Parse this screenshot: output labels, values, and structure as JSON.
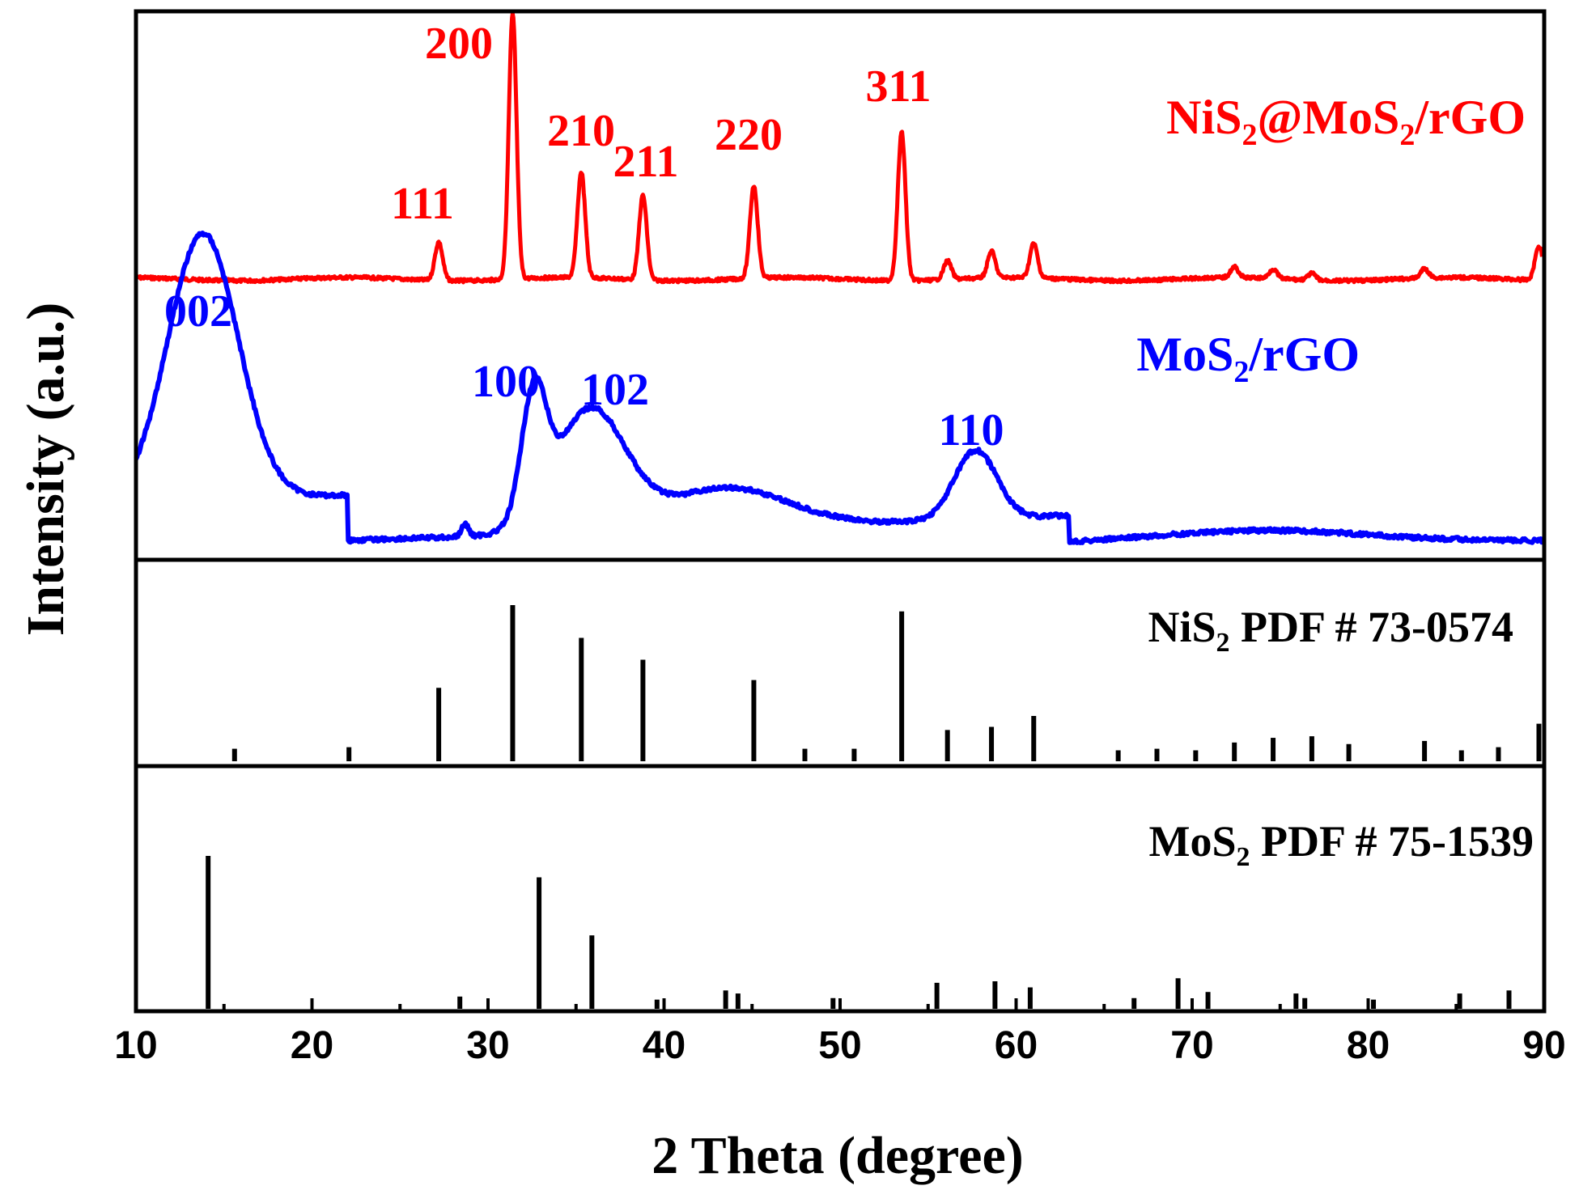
{
  "chart_data": {
    "type": "line",
    "xlabel": "2 Theta (degree)",
    "ylabel": "Intensity (a.u.)",
    "xlim": [
      10,
      90
    ],
    "x_ticks": [
      "10",
      "20",
      "30",
      "40",
      "50",
      "60",
      "70",
      "80",
      "90"
    ],
    "grid": false,
    "colors": {
      "nis2_mos2_rgo": "#ff0000",
      "mos2_rgo": "#0000ff",
      "reference": "#000000"
    },
    "series": [
      {
        "name": "NiS₂@MoS₂/rGO",
        "name_base": "NiS",
        "name_sub1": "2",
        "name_mid": "@MoS",
        "name_sub2": "2",
        "name_end": "/rGO",
        "peaks": [
          {
            "x": 27.2,
            "height": 0.145,
            "label": "111"
          },
          {
            "x": 31.4,
            "height": 1.0,
            "label": "200"
          },
          {
            "x": 35.3,
            "height": 0.4,
            "label": "210"
          },
          {
            "x": 38.8,
            "height": 0.32,
            "label": "211"
          },
          {
            "x": 45.1,
            "height": 0.35,
            "label": "220"
          },
          {
            "x": 53.5,
            "height": 0.56,
            "label": "311"
          },
          {
            "x": 56.1,
            "height": 0.07,
            "label": ""
          },
          {
            "x": 58.6,
            "height": 0.1,
            "label": ""
          },
          {
            "x": 61.0,
            "height": 0.13,
            "label": ""
          },
          {
            "x": 72.4,
            "height": 0.04,
            "label": ""
          },
          {
            "x": 74.6,
            "height": 0.035,
            "label": ""
          },
          {
            "x": 76.8,
            "height": 0.025,
            "label": ""
          },
          {
            "x": 83.2,
            "height": 0.035,
            "label": ""
          },
          {
            "x": 89.7,
            "height": 0.13,
            "label": ""
          }
        ]
      },
      {
        "name": "MoS₂/rGO",
        "name_base": "MoS",
        "name_sub1": "2",
        "name_end": "/rGO",
        "labels": [
          {
            "x": 13.8,
            "label": "002"
          },
          {
            "x": 32.6,
            "label": "100"
          },
          {
            "x": 35.8,
            "label": "102"
          },
          {
            "x": 57.7,
            "label": "110"
          }
        ]
      },
      {
        "name": "NiS₂ PDF # 73-0574",
        "name_base": "NiS",
        "name_sub1": "2",
        "name_end": " PDF # 73-0574",
        "sticks": [
          {
            "x": 15.6,
            "i": 0.08
          },
          {
            "x": 22.1,
            "i": 0.09
          },
          {
            "x": 27.2,
            "i": 0.47
          },
          {
            "x": 31.4,
            "i": 1.0
          },
          {
            "x": 35.3,
            "i": 0.79
          },
          {
            "x": 38.8,
            "i": 0.65
          },
          {
            "x": 45.1,
            "i": 0.52
          },
          {
            "x": 48.0,
            "i": 0.08
          },
          {
            "x": 50.8,
            "i": 0.08
          },
          {
            "x": 53.5,
            "i": 0.96
          },
          {
            "x": 56.1,
            "i": 0.2
          },
          {
            "x": 58.6,
            "i": 0.22
          },
          {
            "x": 61.0,
            "i": 0.29
          },
          {
            "x": 65.8,
            "i": 0.07
          },
          {
            "x": 68.0,
            "i": 0.08
          },
          {
            "x": 70.2,
            "i": 0.07
          },
          {
            "x": 72.4,
            "i": 0.12
          },
          {
            "x": 74.6,
            "i": 0.15
          },
          {
            "x": 76.8,
            "i": 0.16
          },
          {
            "x": 78.9,
            "i": 0.11
          },
          {
            "x": 83.2,
            "i": 0.13
          },
          {
            "x": 85.3,
            "i": 0.07
          },
          {
            "x": 87.4,
            "i": 0.09
          },
          {
            "x": 89.7,
            "i": 0.24
          }
        ]
      },
      {
        "name": "MoS₂ PDF # 75-1539",
        "name_base": "MoS",
        "name_sub1": "2",
        "name_end": " PDF # 75-1539",
        "sticks": [
          {
            "x": 14.1,
            "i": 1.0
          },
          {
            "x": 28.4,
            "i": 0.08
          },
          {
            "x": 32.9,
            "i": 0.86
          },
          {
            "x": 35.9,
            "i": 0.48
          },
          {
            "x": 39.6,
            "i": 0.06
          },
          {
            "x": 43.5,
            "i": 0.12
          },
          {
            "x": 44.2,
            "i": 0.1
          },
          {
            "x": 49.6,
            "i": 0.07
          },
          {
            "x": 55.5,
            "i": 0.17
          },
          {
            "x": 58.8,
            "i": 0.18
          },
          {
            "x": 60.8,
            "i": 0.14
          },
          {
            "x": 66.7,
            "i": 0.07
          },
          {
            "x": 69.2,
            "i": 0.2
          },
          {
            "x": 70.9,
            "i": 0.11
          },
          {
            "x": 75.9,
            "i": 0.1
          },
          {
            "x": 76.4,
            "i": 0.07
          },
          {
            "x": 80.3,
            "i": 0.06
          },
          {
            "x": 85.2,
            "i": 0.1
          },
          {
            "x": 88.0,
            "i": 0.12
          }
        ]
      }
    ]
  }
}
